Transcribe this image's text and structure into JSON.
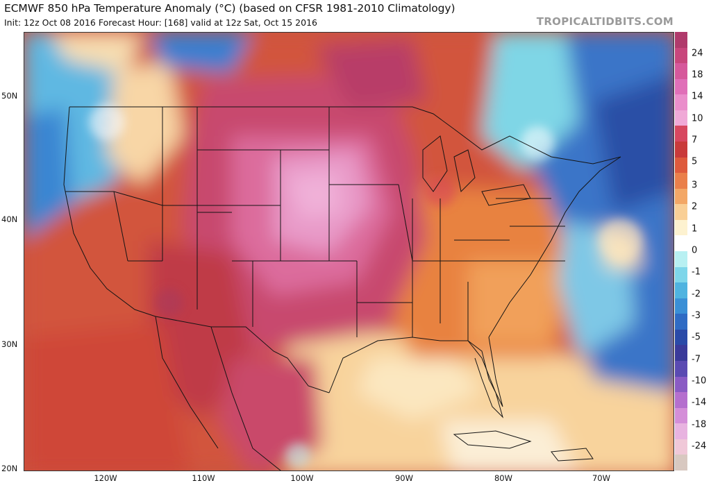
{
  "header": {
    "title": "ECMWF 850 hPa Temperature Anomaly (°C) (based on CFSR 1981-2010 Climatology)",
    "subtitle": "Init: 12z Oct 08 2016   Forecast Hour: [168]   valid at 12z Sat, Oct 15 2016",
    "brand": "TROPICALTIDBITS.COM"
  },
  "axes": {
    "lat_labels": [
      "50N",
      "40N",
      "30N",
      "20N"
    ],
    "lon_labels": [
      "120W",
      "110W",
      "100W",
      "90W",
      "80W",
      "70W"
    ]
  },
  "colorbar": {
    "labels": [
      "24",
      "18",
      "14",
      "10",
      "7",
      "5",
      "3",
      "2",
      "1",
      "0",
      "-1",
      "-2",
      "-3",
      "-5",
      "-7",
      "-10",
      "-14",
      "-18",
      "-24"
    ],
    "colors": [
      "#b03a6b",
      "#c8467c",
      "#d6589b",
      "#e06fb8",
      "#ea8ecb",
      "#f0a9d7",
      "#d7475f",
      "#c93a3a",
      "#de5a3c",
      "#ea7f4a",
      "#f3a766",
      "#f9cf96",
      "#fdf2d0",
      "#ffffff",
      "#b8f0f2",
      "#7ed6ea",
      "#4fb3e0",
      "#3a8fd6",
      "#2f6bc4",
      "#2a4aa8",
      "#3a3a9a",
      "#5a4ab2",
      "#8a5bc4",
      "#b56fce",
      "#d48ed8",
      "#e8b3e0",
      "#f0c8d8",
      "#d8c8c0"
    ]
  }
}
